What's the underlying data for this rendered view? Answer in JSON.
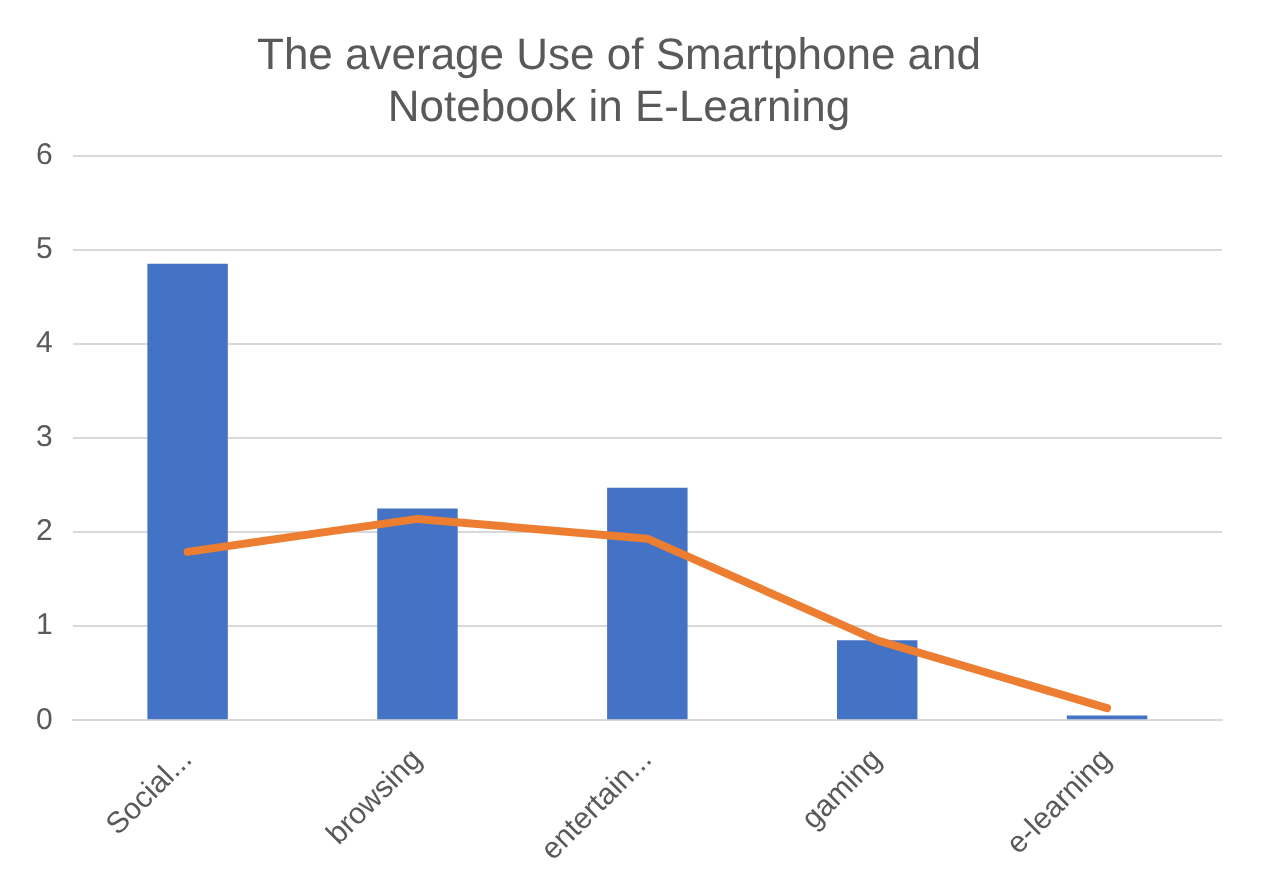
{
  "chart_data": {
    "type": "bar",
    "title": "The average Use of Smartphone and Notebook in E-Learning",
    "categories": [
      "Social...",
      "browsing",
      "entertain...",
      "gaming",
      "e-learning"
    ],
    "series": [
      {
        "color": "#4472c4",
        "values": [
          4.85,
          2.25,
          2.47,
          0.85,
          0.05
        ]
      },
      {
        "type": "line",
        "color": "#ed7d31",
        "values": [
          1.79,
          2.14,
          1.93,
          0.85,
          0.13
        ]
      }
    ],
    "ylim": [
      0,
      6
    ],
    "yticks": [
      0,
      1,
      2,
      3,
      4,
      5,
      6
    ],
    "grid": "y",
    "legend": false,
    "marker": "none"
  }
}
